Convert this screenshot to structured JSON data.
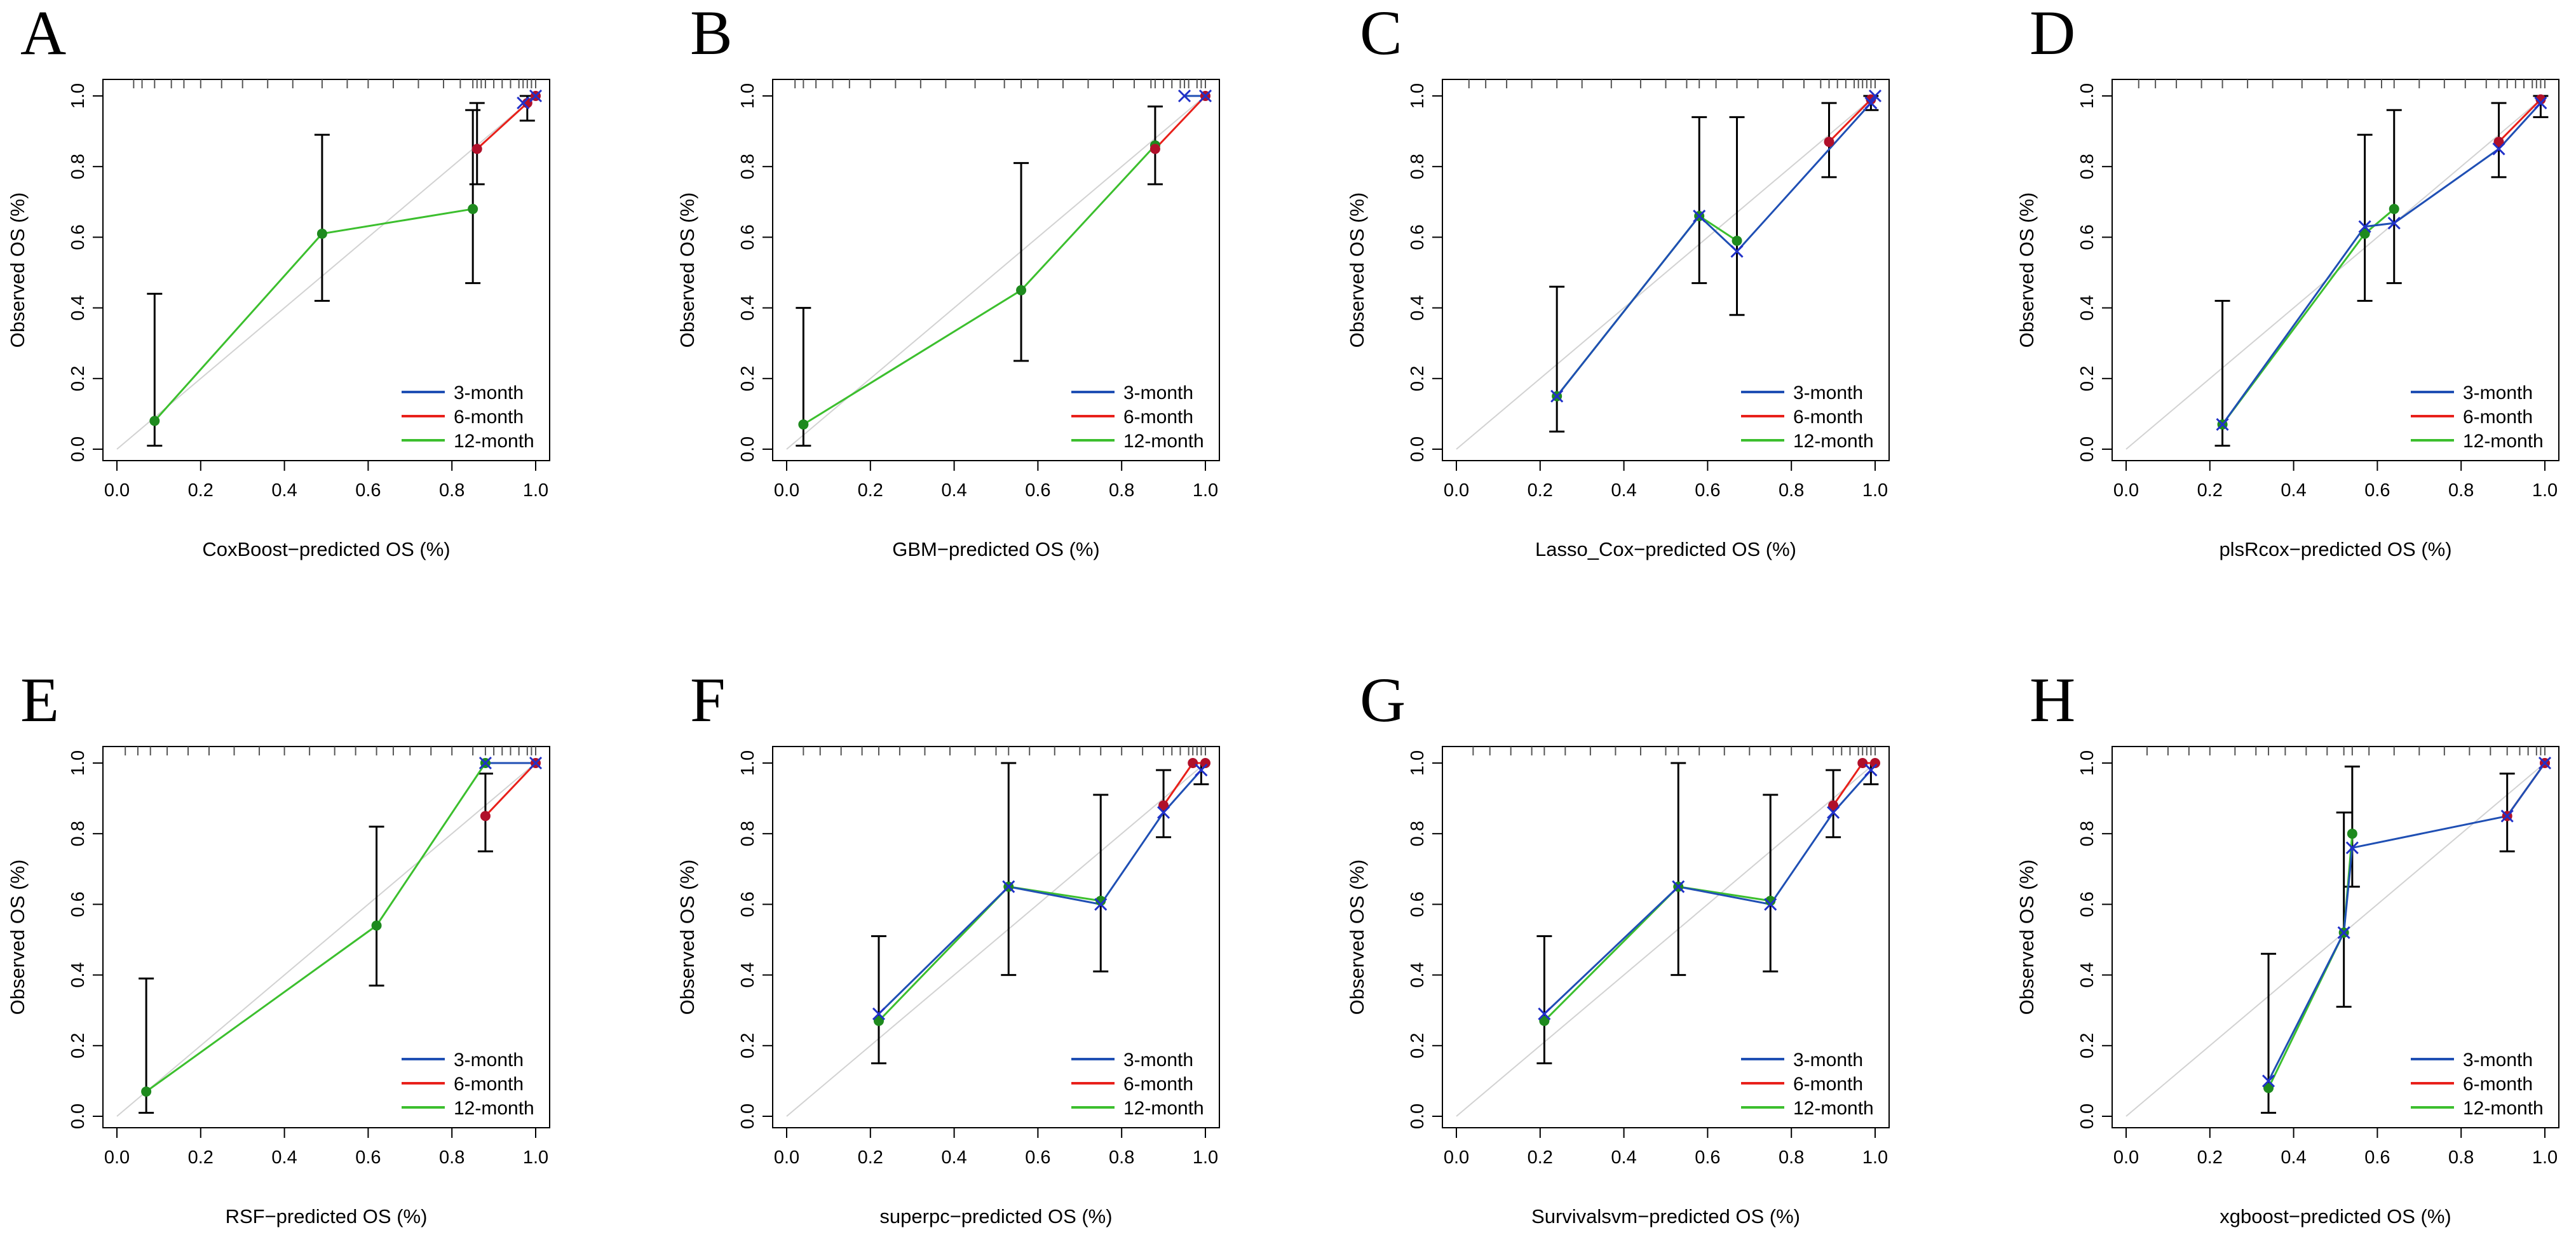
{
  "figure": {
    "y_tick_labels": [
      "0.0",
      "0.2",
      "0.4",
      "0.6",
      "0.8",
      "1.0"
    ],
    "x_tick_labels": [
      "0.0",
      "0.2",
      "0.4",
      "0.6",
      "0.8",
      "1.0"
    ],
    "series_colors": {
      "3-month": "#1f4fb4",
      "6-month": "#e8201a",
      "12-month": "#3cbf2e"
    },
    "marker_colors": {
      "3-month": "#2030c8",
      "6-month": "#b0102a",
      "12-month": "#1e8a1e"
    }
  },
  "chart_data": [
    {
      "panel": "A",
      "type": "line",
      "xlabel": "CoxBoost−predicted OS (%)",
      "ylabel": "Observed OS (%)",
      "xlim": [
        0,
        1
      ],
      "ylim": [
        0,
        1
      ],
      "legend": [
        "3-month",
        "6-month",
        "12-month"
      ],
      "legend_position": "bottom-right",
      "series": [
        {
          "name": "3-month",
          "points": [
            [
              0.97,
              0.98
            ],
            [
              1.0,
              1.0
            ]
          ]
        },
        {
          "name": "6-month",
          "points": [
            [
              0.86,
              0.85
            ],
            [
              0.98,
              0.98
            ],
            [
              1.0,
              1.0
            ]
          ]
        },
        {
          "name": "12-month",
          "points": [
            [
              0.09,
              0.08
            ],
            [
              0.49,
              0.61
            ],
            [
              0.85,
              0.68
            ]
          ]
        }
      ],
      "error_bars": [
        [
          0.09,
          0.01,
          0.44
        ],
        [
          0.49,
          0.42,
          0.89
        ],
        [
          0.85,
          0.47,
          0.96
        ],
        [
          0.86,
          0.75,
          0.98
        ],
        [
          0.98,
          0.93,
          1.0
        ]
      ],
      "rug": [
        0.04,
        0.06,
        0.09,
        0.13,
        0.16,
        0.2,
        0.25,
        0.3,
        0.36,
        0.42,
        0.49,
        0.55,
        0.6,
        0.66,
        0.72,
        0.78,
        0.82,
        0.85,
        0.86,
        0.87,
        0.88,
        0.9,
        0.92,
        0.94,
        0.96,
        0.97,
        0.98,
        0.99,
        1.0
      ]
    },
    {
      "panel": "B",
      "type": "line",
      "xlabel": "GBM−predicted OS (%)",
      "ylabel": "Observed OS (%)",
      "xlim": [
        0,
        1
      ],
      "ylim": [
        0,
        1
      ],
      "legend": [
        "3-month",
        "6-month",
        "12-month"
      ],
      "legend_position": "bottom-right",
      "series": [
        {
          "name": "3-month",
          "points": [
            [
              0.95,
              1.0
            ],
            [
              1.0,
              1.0
            ]
          ]
        },
        {
          "name": "6-month",
          "points": [
            [
              0.88,
              0.85
            ],
            [
              1.0,
              1.0
            ]
          ]
        },
        {
          "name": "12-month",
          "points": [
            [
              0.04,
              0.07
            ],
            [
              0.56,
              0.45
            ],
            [
              0.88,
              0.86
            ]
          ]
        }
      ],
      "error_bars": [
        [
          0.04,
          0.01,
          0.4
        ],
        [
          0.56,
          0.25,
          0.81
        ],
        [
          0.88,
          0.75,
          0.97
        ]
      ],
      "rug": [
        0.02,
        0.04,
        0.07,
        0.11,
        0.15,
        0.2,
        0.26,
        0.32,
        0.38,
        0.45,
        0.52,
        0.56,
        0.6,
        0.66,
        0.72,
        0.78,
        0.83,
        0.87,
        0.88,
        0.9,
        0.92,
        0.94,
        0.95,
        0.96,
        0.98,
        0.99,
        1.0
      ]
    },
    {
      "panel": "C",
      "type": "line",
      "xlabel": "Lasso_Cox−predicted OS (%)",
      "ylabel": "Observed OS (%)",
      "xlim": [
        0,
        1
      ],
      "ylim": [
        0,
        1
      ],
      "legend": [
        "3-month",
        "6-month",
        "12-month"
      ],
      "legend_position": "bottom-right",
      "series": [
        {
          "name": "3-month",
          "points": [
            [
              0.24,
              0.15
            ],
            [
              0.58,
              0.66
            ],
            [
              0.67,
              0.56
            ],
            [
              0.99,
              0.98
            ],
            [
              1.0,
              1.0
            ]
          ]
        },
        {
          "name": "6-month",
          "points": [
            [
              0.89,
              0.87
            ],
            [
              0.99,
              0.99
            ]
          ]
        },
        {
          "name": "12-month",
          "points": [
            [
              0.24,
              0.15
            ],
            [
              0.58,
              0.66
            ],
            [
              0.67,
              0.59
            ]
          ]
        }
      ],
      "error_bars": [
        [
          0.24,
          0.05,
          0.46
        ],
        [
          0.58,
          0.47,
          0.94
        ],
        [
          0.67,
          0.38,
          0.94
        ],
        [
          0.89,
          0.77,
          0.98
        ],
        [
          0.99,
          0.96,
          1.0
        ]
      ],
      "rug": [
        0.03,
        0.07,
        0.12,
        0.18,
        0.24,
        0.3,
        0.37,
        0.44,
        0.5,
        0.55,
        0.58,
        0.62,
        0.67,
        0.72,
        0.78,
        0.83,
        0.87,
        0.89,
        0.91,
        0.93,
        0.95,
        0.96,
        0.97,
        0.98,
        0.99,
        1.0
      ]
    },
    {
      "panel": "D",
      "type": "line",
      "xlabel": "plsRcox−predicted OS (%)",
      "ylabel": "Observed OS (%)",
      "xlim": [
        0,
        1
      ],
      "ylim": [
        0,
        1
      ],
      "legend": [
        "3-month",
        "6-month",
        "12-month"
      ],
      "legend_position": "bottom-right",
      "series": [
        {
          "name": "3-month",
          "points": [
            [
              0.23,
              0.07
            ],
            [
              0.57,
              0.63
            ],
            [
              0.64,
              0.64
            ],
            [
              0.89,
              0.85
            ],
            [
              0.99,
              0.98
            ]
          ]
        },
        {
          "name": "6-month",
          "points": [
            [
              0.89,
              0.87
            ],
            [
              0.99,
              0.99
            ]
          ]
        },
        {
          "name": "12-month",
          "points": [
            [
              0.23,
              0.07
            ],
            [
              0.57,
              0.61
            ],
            [
              0.64,
              0.68
            ]
          ]
        }
      ],
      "error_bars": [
        [
          0.23,
          0.01,
          0.42
        ],
        [
          0.57,
          0.42,
          0.89
        ],
        [
          0.64,
          0.47,
          0.96
        ],
        [
          0.89,
          0.77,
          0.98
        ],
        [
          0.99,
          0.94,
          1.0
        ]
      ],
      "rug": [
        0.03,
        0.07,
        0.12,
        0.18,
        0.23,
        0.29,
        0.35,
        0.42,
        0.48,
        0.53,
        0.57,
        0.61,
        0.64,
        0.7,
        0.76,
        0.81,
        0.86,
        0.89,
        0.91,
        0.93,
        0.95,
        0.97,
        0.98,
        0.99,
        1.0
      ]
    },
    {
      "panel": "E",
      "type": "line",
      "xlabel": "RSF−predicted OS (%)",
      "ylabel": "Observed OS (%)",
      "xlim": [
        0,
        1
      ],
      "ylim": [
        0,
        1
      ],
      "legend": [
        "3-month",
        "6-month",
        "12-month"
      ],
      "legend_position": "bottom-right",
      "series": [
        {
          "name": "3-month",
          "points": [
            [
              0.88,
              1.0
            ],
            [
              1.0,
              1.0
            ]
          ]
        },
        {
          "name": "6-month",
          "points": [
            [
              0.88,
              0.85
            ],
            [
              1.0,
              1.0
            ]
          ]
        },
        {
          "name": "12-month",
          "points": [
            [
              0.07,
              0.07
            ],
            [
              0.62,
              0.54
            ],
            [
              0.88,
              1.0
            ]
          ]
        }
      ],
      "error_bars": [
        [
          0.07,
          0.01,
          0.39
        ],
        [
          0.62,
          0.37,
          0.82
        ],
        [
          0.88,
          0.75,
          0.97
        ]
      ],
      "rug": [
        0.02,
        0.05,
        0.08,
        0.12,
        0.17,
        0.22,
        0.28,
        0.34,
        0.4,
        0.46,
        0.52,
        0.57,
        0.62,
        0.66,
        0.7,
        0.75,
        0.8,
        0.85,
        0.88,
        0.9,
        0.92,
        0.94,
        0.96,
        0.98,
        0.99,
        1.0
      ]
    },
    {
      "panel": "F",
      "type": "line",
      "xlabel": "superpc−predicted OS (%)",
      "ylabel": "Observed OS (%)",
      "xlim": [
        0,
        1
      ],
      "ylim": [
        0,
        1
      ],
      "legend": [
        "3-month",
        "6-month",
        "12-month"
      ],
      "legend_position": "bottom-right",
      "series": [
        {
          "name": "3-month",
          "points": [
            [
              0.22,
              0.29
            ],
            [
              0.53,
              0.65
            ],
            [
              0.75,
              0.6
            ],
            [
              0.9,
              0.86
            ],
            [
              0.99,
              0.98
            ]
          ]
        },
        {
          "name": "6-month",
          "points": [
            [
              0.9,
              0.88
            ],
            [
              0.97,
              1.0
            ],
            [
              1.0,
              1.0
            ]
          ]
        },
        {
          "name": "12-month",
          "points": [
            [
              0.22,
              0.27
            ],
            [
              0.53,
              0.65
            ],
            [
              0.75,
              0.61
            ]
          ]
        }
      ],
      "error_bars": [
        [
          0.22,
          0.15,
          0.51
        ],
        [
          0.53,
          0.4,
          1.0
        ],
        [
          0.75,
          0.41,
          0.91
        ],
        [
          0.9,
          0.79,
          0.98
        ],
        [
          0.99,
          0.94,
          1.0
        ]
      ],
      "rug": [
        0.04,
        0.08,
        0.13,
        0.18,
        0.22,
        0.27,
        0.33,
        0.39,
        0.45,
        0.5,
        0.53,
        0.58,
        0.64,
        0.7,
        0.75,
        0.8,
        0.85,
        0.9,
        0.92,
        0.94,
        0.96,
        0.97,
        0.98,
        0.99,
        1.0
      ]
    },
    {
      "panel": "G",
      "type": "line",
      "xlabel": "Survivalsvm−predicted OS (%)",
      "ylabel": "Observed OS (%)",
      "xlim": [
        0,
        1
      ],
      "ylim": [
        0,
        1
      ],
      "legend": [
        "3-month",
        "6-month",
        "12-month"
      ],
      "legend_position": "bottom-right",
      "series": [
        {
          "name": "3-month",
          "points": [
            [
              0.21,
              0.29
            ],
            [
              0.53,
              0.65
            ],
            [
              0.75,
              0.6
            ],
            [
              0.9,
              0.86
            ],
            [
              0.99,
              0.98
            ]
          ]
        },
        {
          "name": "6-month",
          "points": [
            [
              0.9,
              0.88
            ],
            [
              0.97,
              1.0
            ],
            [
              1.0,
              1.0
            ]
          ]
        },
        {
          "name": "12-month",
          "points": [
            [
              0.21,
              0.27
            ],
            [
              0.53,
              0.65
            ],
            [
              0.75,
              0.61
            ]
          ]
        }
      ],
      "error_bars": [
        [
          0.21,
          0.15,
          0.51
        ],
        [
          0.53,
          0.4,
          1.0
        ],
        [
          0.75,
          0.41,
          0.91
        ],
        [
          0.9,
          0.79,
          0.98
        ],
        [
          0.99,
          0.94,
          1.0
        ]
      ],
      "rug": [
        0.04,
        0.08,
        0.13,
        0.18,
        0.21,
        0.26,
        0.32,
        0.38,
        0.44,
        0.5,
        0.53,
        0.58,
        0.64,
        0.7,
        0.75,
        0.8,
        0.85,
        0.9,
        0.92,
        0.94,
        0.96,
        0.97,
        0.98,
        0.99,
        1.0
      ]
    },
    {
      "panel": "H",
      "type": "line",
      "xlabel": "xgboost−predicted OS (%)",
      "ylabel": "Observed OS (%)",
      "xlim": [
        0,
        1
      ],
      "ylim": [
        0,
        1
      ],
      "legend": [
        "3-month",
        "6-month",
        "12-month"
      ],
      "legend_position": "bottom-right",
      "series": [
        {
          "name": "3-month",
          "points": [
            [
              0.34,
              0.1
            ],
            [
              0.52,
              0.52
            ],
            [
              0.54,
              0.76
            ],
            [
              0.91,
              0.85
            ],
            [
              1.0,
              1.0
            ]
          ]
        },
        {
          "name": "6-month",
          "points": [
            [
              0.91,
              0.85
            ],
            [
              1.0,
              1.0
            ]
          ]
        },
        {
          "name": "12-month",
          "points": [
            [
              0.34,
              0.08
            ],
            [
              0.52,
              0.52
            ],
            [
              0.54,
              0.8
            ]
          ]
        }
      ],
      "error_bars": [
        [
          0.34,
          0.01,
          0.46
        ],
        [
          0.52,
          0.31,
          0.86
        ],
        [
          0.54,
          0.65,
          0.99
        ],
        [
          0.91,
          0.75,
          0.97
        ]
      ],
      "rug": [
        0.05,
        0.1,
        0.15,
        0.2,
        0.26,
        0.31,
        0.34,
        0.38,
        0.43,
        0.48,
        0.52,
        0.54,
        0.58,
        0.64,
        0.7,
        0.76,
        0.82,
        0.87,
        0.91,
        0.94,
        0.96,
        0.98,
        0.99,
        1.0
      ]
    }
  ]
}
